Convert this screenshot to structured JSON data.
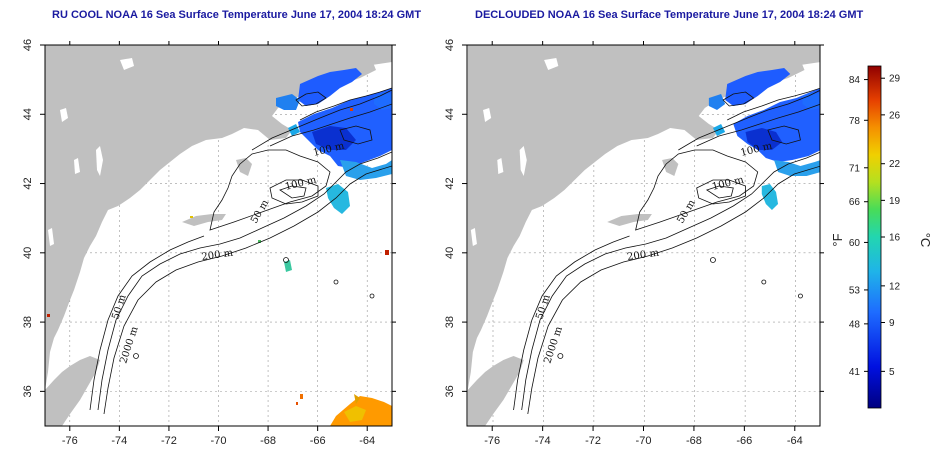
{
  "titles": {
    "left": "RU COOL NOAA 16 Sea Surface Temperature June 17, 2004 18:24 GMT",
    "right": "DECLOUDED NOAA 16 Sea Surface Temperature June 17, 2004 18:24 GMT"
  },
  "axes": {
    "x_ticks": [
      "-76",
      "-74",
      "-72",
      "-70",
      "-68",
      "-66",
      "-64"
    ],
    "x_values": [
      -76,
      -74,
      -72,
      -70,
      -68,
      -66,
      -64
    ],
    "y_ticks": [
      "46",
      "44",
      "42",
      "40",
      "38",
      "36"
    ],
    "y_values": [
      46,
      44,
      42,
      40,
      38,
      36
    ],
    "lon_range": [
      -77,
      -63
    ],
    "lat_range": [
      35,
      46
    ]
  },
  "contour_labels": {
    "c100a": "100 m",
    "c100b": "100 m",
    "c50a": "50 m",
    "c50b": "50 m",
    "c200": "200 m",
    "c2000": "2000 m"
  },
  "colorbar": {
    "fahrenheit_unit": "°F",
    "celsius_unit": "°C",
    "fahrenheit_ticks": [
      "84",
      "78",
      "71",
      "66",
      "60",
      "53",
      "48",
      "41"
    ],
    "fahrenheit_values": [
      84,
      78,
      71,
      66,
      60,
      53,
      48,
      41
    ],
    "celsius_ticks": [
      "29",
      "26",
      "22",
      "19",
      "16",
      "12",
      "9",
      "5"
    ],
    "celsius_values": [
      29,
      26,
      22,
      19,
      16,
      12,
      9,
      5
    ],
    "range_celsius": [
      2,
      30
    ]
  },
  "colors": {
    "land": "#c0c0c0",
    "frame": "#000000",
    "grid": "#999999",
    "title": "#1a1aa0"
  }
}
